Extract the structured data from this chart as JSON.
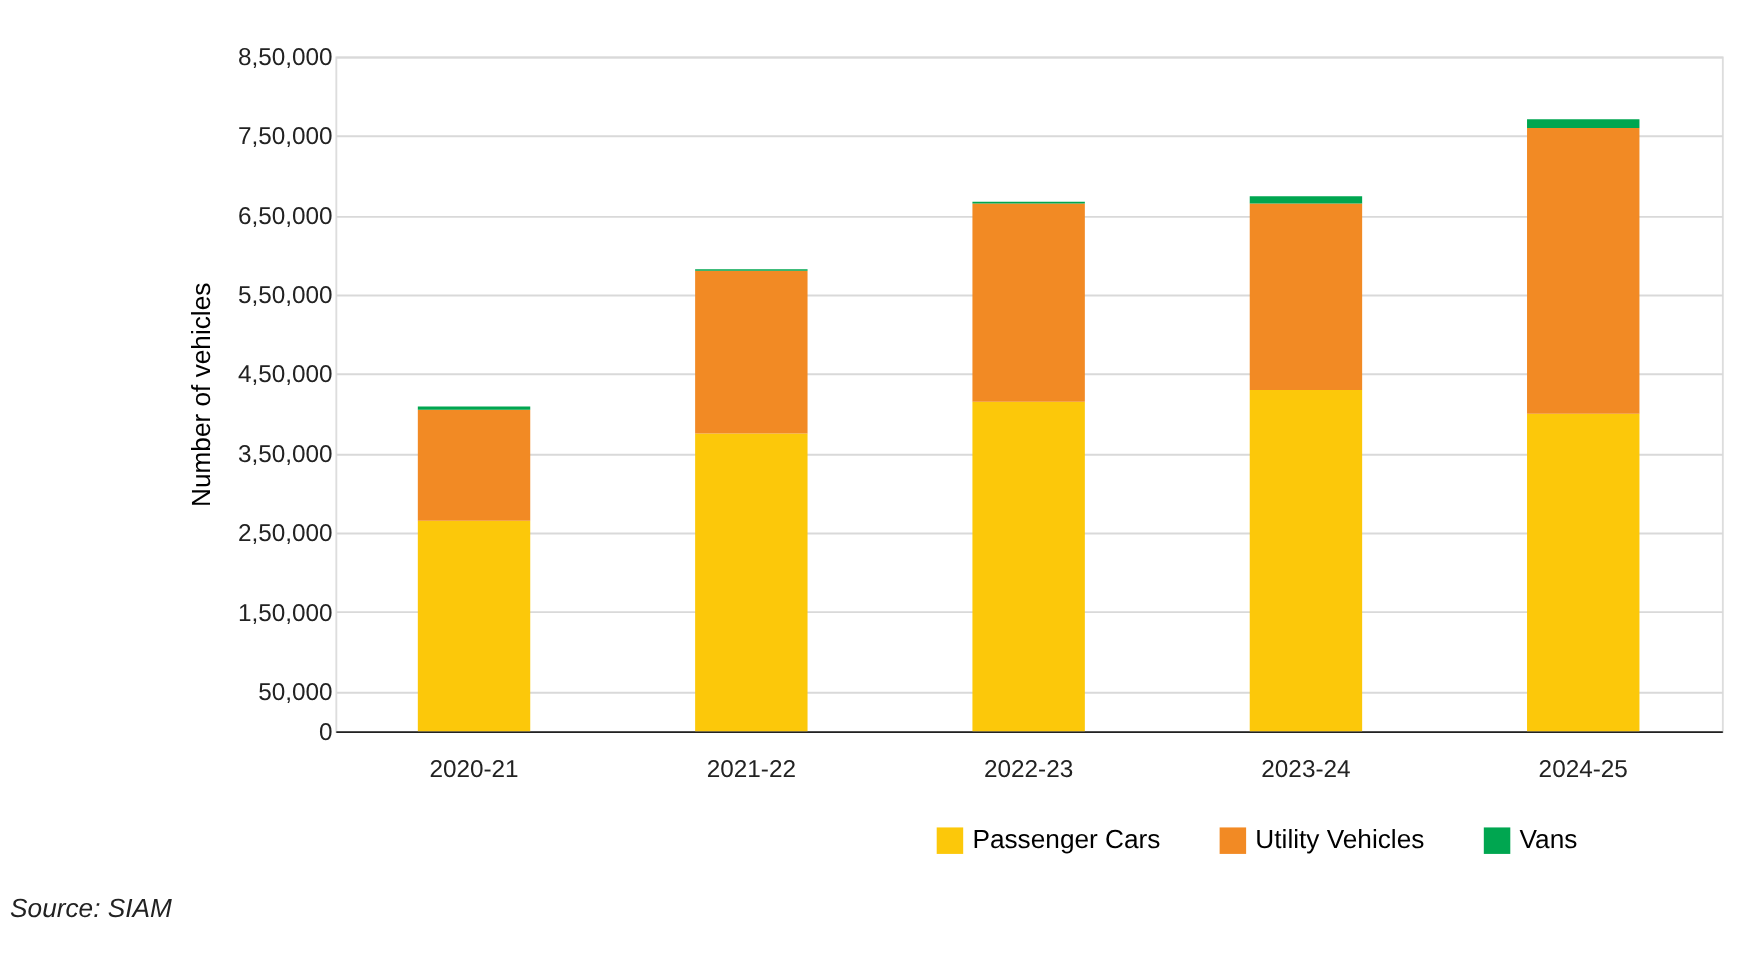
{
  "chart_data": {
    "type": "bar",
    "stacked": true,
    "categories": [
      "2020-21",
      "2021-22",
      "2022-23",
      "2023-24",
      "2024-25"
    ],
    "series": [
      {
        "name": "Passenger Cars",
        "color": "#fcc80a",
        "values": [
          265000,
          375000,
          415000,
          430000,
          400000
        ]
      },
      {
        "name": "Utility Vehicles",
        "color": "#f28a24",
        "values": [
          140000,
          205000,
          250000,
          235000,
          360000
        ]
      },
      {
        "name": "Vans",
        "color": "#00a650",
        "values": [
          4000,
          2000,
          2000,
          9000,
          11000
        ]
      }
    ],
    "ylabel": "Number of vehicles",
    "ylim": [
      0,
      850000
    ],
    "yticks": [
      0,
      {
        "value": 50000,
        "label": "50,000"
      },
      {
        "value": 150000,
        "label": "1,50,000"
      },
      {
        "value": 250000,
        "label": "2,50,000"
      },
      {
        "value": 350000,
        "label": "3,50,000"
      },
      {
        "value": 450000,
        "label": "4,50,000"
      },
      {
        "value": 550000,
        "label": "5,50,000"
      },
      {
        "value": 650000,
        "label": "6,50,000"
      },
      {
        "value": 750000,
        "label": "7,50,000"
      },
      {
        "value": 850000,
        "label": "8,50,000"
      }
    ],
    "grid": "y",
    "legend": "bottom right",
    "annotations": [
      "Source: SIAM"
    ]
  }
}
